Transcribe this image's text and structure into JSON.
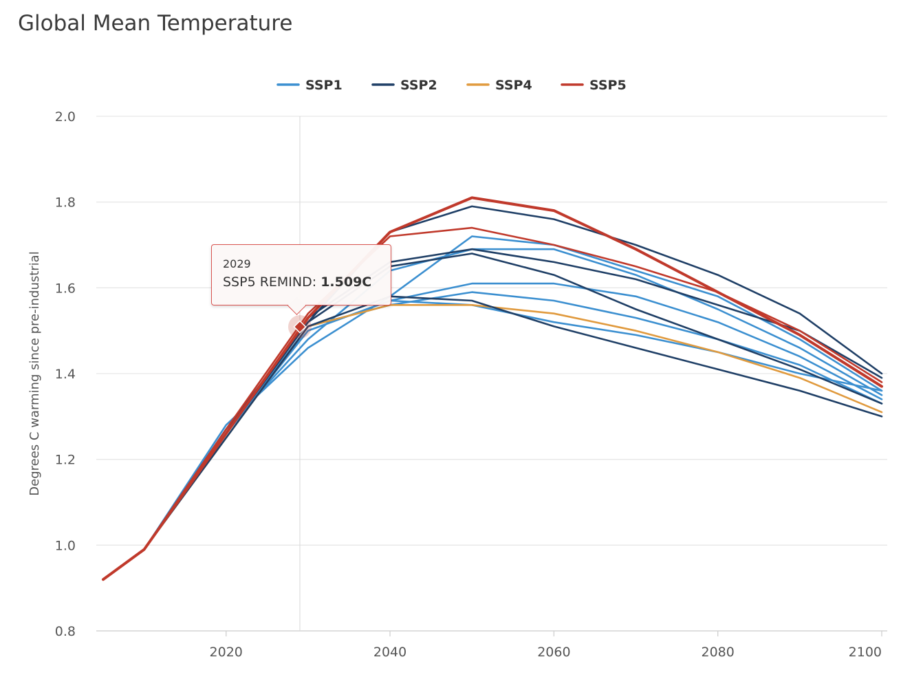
{
  "title": "Global Mean Temperature",
  "legend": [
    {
      "label": "SSP1",
      "color": "#3b8fd0"
    },
    {
      "label": "SSP2",
      "color": "#1f3f66"
    },
    {
      "label": "SSP4",
      "color": "#e09a3e"
    },
    {
      "label": "SSP5",
      "color": "#c0392b"
    }
  ],
  "tooltip": {
    "year": "2029",
    "series_label": "SSP5 REMIND: ",
    "value_label": "1.509C"
  },
  "chart_data": {
    "type": "line",
    "title": "Global Mean Temperature",
    "xlabel": "",
    "ylabel": "Degrees C warming since pre-industrial",
    "xlim": [
      2005,
      2100
    ],
    "ylim": [
      0.8,
      2.0
    ],
    "x_ticks": [
      "2020",
      "2040",
      "2060",
      "2080",
      "2100"
    ],
    "y_ticks": [
      "0.8",
      "1.0",
      "1.2",
      "1.4",
      "1.6",
      "1.8",
      "2.0"
    ],
    "x": [
      2005,
      2010,
      2020,
      2030,
      2040,
      2050,
      2060,
      2070,
      2080,
      2090,
      2100
    ],
    "grid": true,
    "legend_position": "top",
    "series": [
      {
        "group": "SSP1",
        "values": [
          0.92,
          0.99,
          1.28,
          1.46,
          1.58,
          1.72,
          1.7,
          1.64,
          1.58,
          1.48,
          1.36
        ]
      },
      {
        "group": "SSP1",
        "values": [
          0.92,
          0.99,
          1.27,
          1.48,
          1.64,
          1.69,
          1.69,
          1.63,
          1.55,
          1.46,
          1.35
        ]
      },
      {
        "group": "SSP1",
        "values": [
          0.92,
          0.99,
          1.27,
          1.5,
          1.57,
          1.61,
          1.61,
          1.58,
          1.52,
          1.44,
          1.34
        ]
      },
      {
        "group": "SSP1",
        "values": [
          0.92,
          0.99,
          1.26,
          1.51,
          1.56,
          1.59,
          1.57,
          1.53,
          1.48,
          1.42,
          1.33
        ]
      },
      {
        "group": "SSP1",
        "values": [
          0.92,
          0.99,
          1.26,
          1.5,
          1.57,
          1.56,
          1.52,
          1.49,
          1.45,
          1.4,
          1.36
        ]
      },
      {
        "group": "SSP2",
        "values": [
          0.92,
          0.99,
          1.27,
          1.52,
          1.73,
          1.79,
          1.76,
          1.7,
          1.63,
          1.54,
          1.4
        ]
      },
      {
        "group": "SSP2",
        "values": [
          0.92,
          0.99,
          1.26,
          1.53,
          1.66,
          1.69,
          1.66,
          1.62,
          1.56,
          1.5,
          1.39
        ]
      },
      {
        "group": "SSP2",
        "values": [
          0.92,
          0.99,
          1.26,
          1.52,
          1.65,
          1.68,
          1.63,
          1.55,
          1.48,
          1.41,
          1.33
        ]
      },
      {
        "group": "SSP2",
        "values": [
          0.92,
          0.99,
          1.25,
          1.51,
          1.58,
          1.57,
          1.51,
          1.46,
          1.41,
          1.36,
          1.3
        ]
      },
      {
        "group": "SSP4",
        "values": [
          0.92,
          0.99,
          1.25,
          1.51,
          1.56,
          1.56,
          1.54,
          1.5,
          1.45,
          1.39,
          1.31
        ]
      },
      {
        "group": "SSP5",
        "values": [
          0.92,
          0.99,
          1.27,
          1.54,
          1.72,
          1.74,
          1.7,
          1.65,
          1.59,
          1.5,
          1.38
        ]
      },
      {
        "group": "SSP5",
        "values": [
          0.92,
          0.99,
          1.26,
          1.53,
          1.73,
          1.81,
          1.78,
          1.69,
          1.59,
          1.49,
          1.37
        ]
      }
    ],
    "highlight": {
      "group": "SSP5",
      "x": 2029,
      "y": 1.509
    }
  }
}
